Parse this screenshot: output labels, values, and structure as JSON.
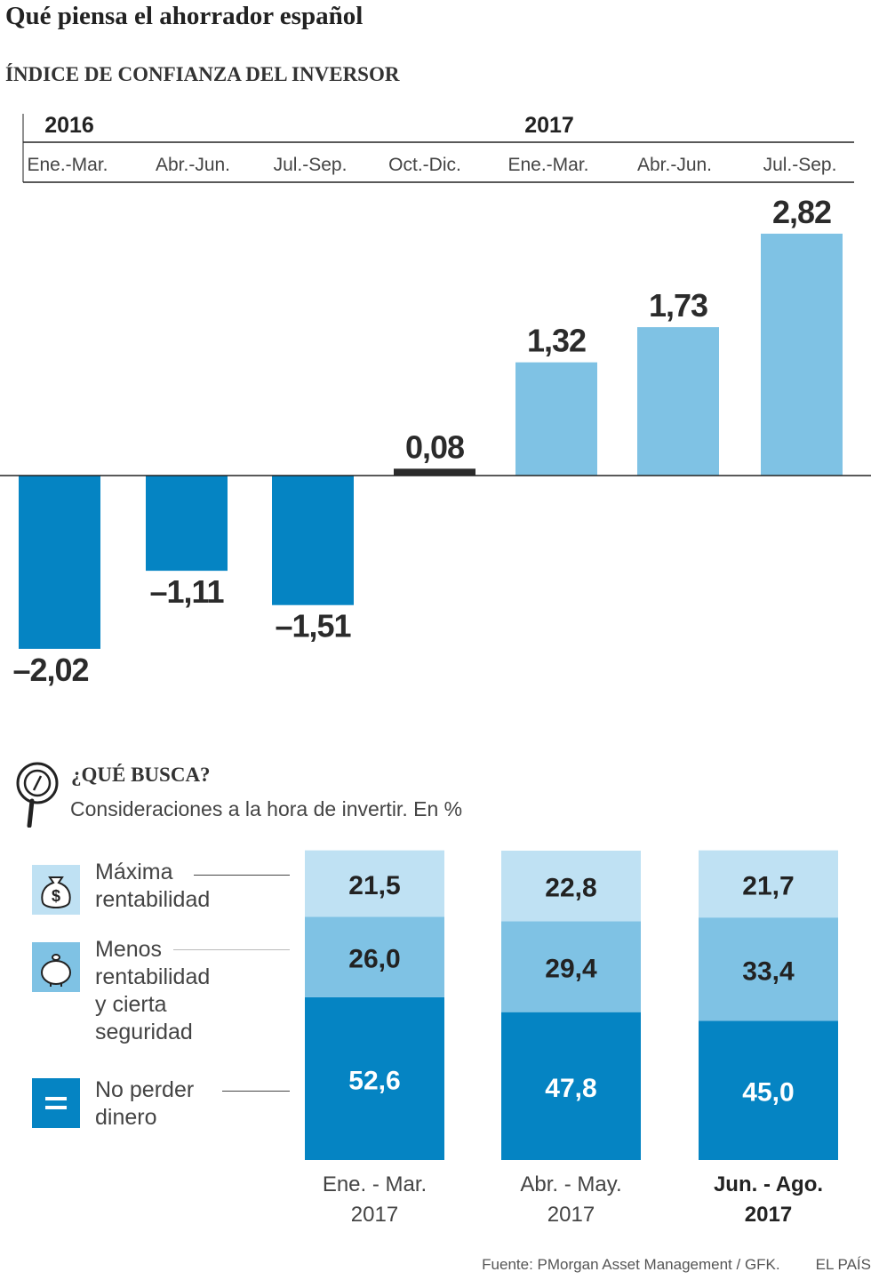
{
  "header": {
    "title": "Qué piensa el ahorrador español",
    "subtitle": "ÍNDICE DE CONFIANZA DEL INVERSOR"
  },
  "chart_data": [
    {
      "type": "bar",
      "title": "ÍNDICE DE CONFIANZA DEL INVERSOR",
      "year_labels": [
        "2016",
        "2017"
      ],
      "categories": [
        "Ene.-Mar.",
        "Abr.-Jun.",
        "Jul.-Sep.",
        "Oct.-Dic.",
        "Ene.-Mar.",
        "Abr.-Jun.",
        "Jul.-Sep."
      ],
      "years": [
        "2016",
        "2016",
        "2016",
        "2016",
        "2017",
        "2017",
        "2017"
      ],
      "values": [
        -2.02,
        -1.11,
        -1.51,
        0.08,
        1.32,
        1.73,
        2.82
      ],
      "value_labels": [
        "–2,02",
        "–1,11",
        "–1,51",
        "0,08",
        "1,32",
        "1,73",
        "2,82"
      ],
      "ylim": [
        -2.3,
        3.1
      ],
      "grid": false,
      "colors": {
        "negative": "#0584c3",
        "neutral": "#2b2b2b",
        "positive": "#7fc2e4",
        "baseline": "#222222"
      }
    },
    {
      "type": "bar",
      "stacked": true,
      "title": "¿QUÉ BUSCA?",
      "subtitle": "Consideraciones a la hora de invertir. En %",
      "categories": [
        "Ene. - Mar. 2017",
        "Abr. - May. 2017",
        "Jun. - Ago. 2017"
      ],
      "category_lines": [
        [
          "Ene. - Mar.",
          "2017"
        ],
        [
          "Abr. - May.",
          "2017"
        ],
        [
          "Jun. - Ago.",
          "2017"
        ]
      ],
      "highlighted_category": 2,
      "ylim": [
        0,
        100
      ],
      "series": [
        {
          "name": "No perder dinero",
          "values": [
            52.6,
            47.8,
            45.0
          ],
          "labels": [
            "52,6",
            "47,8",
            "45,0"
          ],
          "color": "#0584c3",
          "label_color": "#ffffff"
        },
        {
          "name": "Menos rentabilidad y cierta seguridad",
          "values": [
            26.0,
            29.4,
            33.4
          ],
          "labels": [
            "26,0",
            "29,4",
            "33,4"
          ],
          "color": "#7fc2e4",
          "label_color": "#222222"
        },
        {
          "name": "Máxima rentabilidad",
          "values": [
            21.5,
            22.8,
            21.7
          ],
          "labels": [
            "21,5",
            "22,8",
            "21,7"
          ],
          "color": "#bfe1f3",
          "label_color": "#222222"
        }
      ]
    }
  ],
  "section2": {
    "title": "¿QUÉ BUSCA?",
    "subtitle": "Consideraciones a la hora de invertir. En %",
    "legend": [
      {
        "lines": [
          "Máxima",
          "rentabilidad"
        ],
        "icon": "money-bag-icon",
        "color": "#bfe1f3"
      },
      {
        "lines": [
          "Menos",
          "rentabilidad",
          "y cierta",
          "seguridad"
        ],
        "icon": "piggy-bank-icon",
        "color": "#7fc2e4"
      },
      {
        "lines": [
          "No perder",
          "dinero"
        ],
        "icon": "equals-icon",
        "color": "#0584c3"
      }
    ]
  },
  "footer": {
    "source": "Fuente: PMorgan Asset Management / GFK.",
    "brand": "EL PAÍS"
  }
}
